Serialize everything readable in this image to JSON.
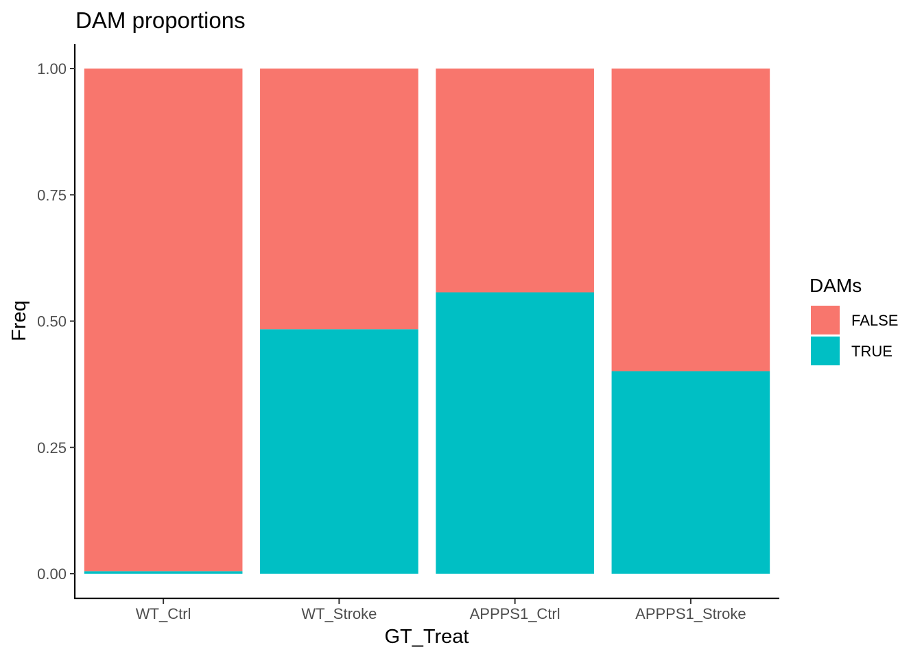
{
  "chart_data": {
    "type": "bar",
    "stacked": true,
    "title": "DAM proportions",
    "xlabel": "GT_Treat",
    "ylabel": "Freq",
    "ylim": [
      0,
      1
    ],
    "yticks": [
      "0.00",
      "0.25",
      "0.50",
      "0.75",
      "1.00"
    ],
    "ytick_values": [
      0,
      0.25,
      0.5,
      0.75,
      1.0
    ],
    "categories": [
      "WT_Ctrl",
      "WT_Stroke",
      "APPPS1_Ctrl",
      "APPPS1_Stroke"
    ],
    "series": [
      {
        "name": "TRUE",
        "color": "#00BFC4",
        "values": [
          0.005,
          0.484,
          0.557,
          0.401
        ]
      },
      {
        "name": "FALSE",
        "color": "#F8766D",
        "values": [
          0.995,
          0.516,
          0.443,
          0.599
        ]
      }
    ],
    "legend": {
      "title": "DAMs",
      "position": "right",
      "entries": [
        {
          "label": "FALSE",
          "color": "#F8766D"
        },
        {
          "label": "TRUE",
          "color": "#00BFC4"
        }
      ]
    },
    "grid": false
  }
}
